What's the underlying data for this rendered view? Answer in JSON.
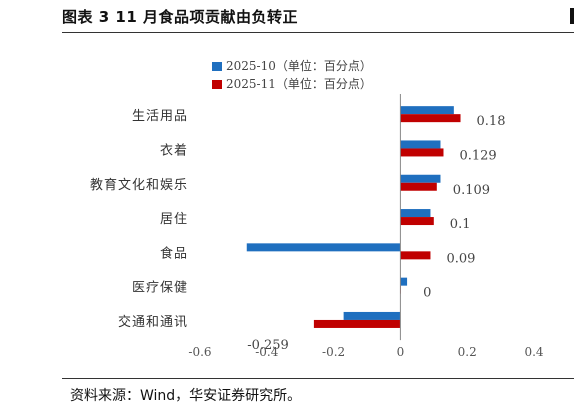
{
  "header": {
    "title": "图表 3 11 月食品项贡献由负转正"
  },
  "footer": {
    "source": "资料来源：Wind，华安证券研究所。"
  },
  "colors": {
    "series_blue": "#1f6fbf",
    "series_red": "#c00000"
  },
  "chart_data": {
    "type": "bar",
    "orientation": "horizontal",
    "categories": [
      "生活用品",
      "衣着",
      "教育文化和娱乐",
      "居住",
      "食品",
      "医疗保健",
      "交通和通讯"
    ],
    "series": [
      {
        "name": "2025-10（单位：百分点）",
        "values": [
          0.16,
          0.12,
          0.12,
          0.09,
          -0.46,
          0.02,
          -0.17
        ]
      },
      {
        "name": "2025-11（单位：百分点）",
        "values": [
          0.18,
          0.129,
          0.109,
          0.1,
          0.09,
          0,
          -0.259
        ]
      }
    ],
    "data_labels": [
      "0.18",
      "0.129",
      "0.109",
      "0.1",
      "0.09",
      "0",
      "-0.259"
    ],
    "xlim": [
      -0.6,
      0.4
    ],
    "xticks": [
      "-0.6",
      "-0.4",
      "-0.2",
      "0",
      "0.2",
      "0.4"
    ],
    "legend_position": "top-center",
    "grid": false
  }
}
